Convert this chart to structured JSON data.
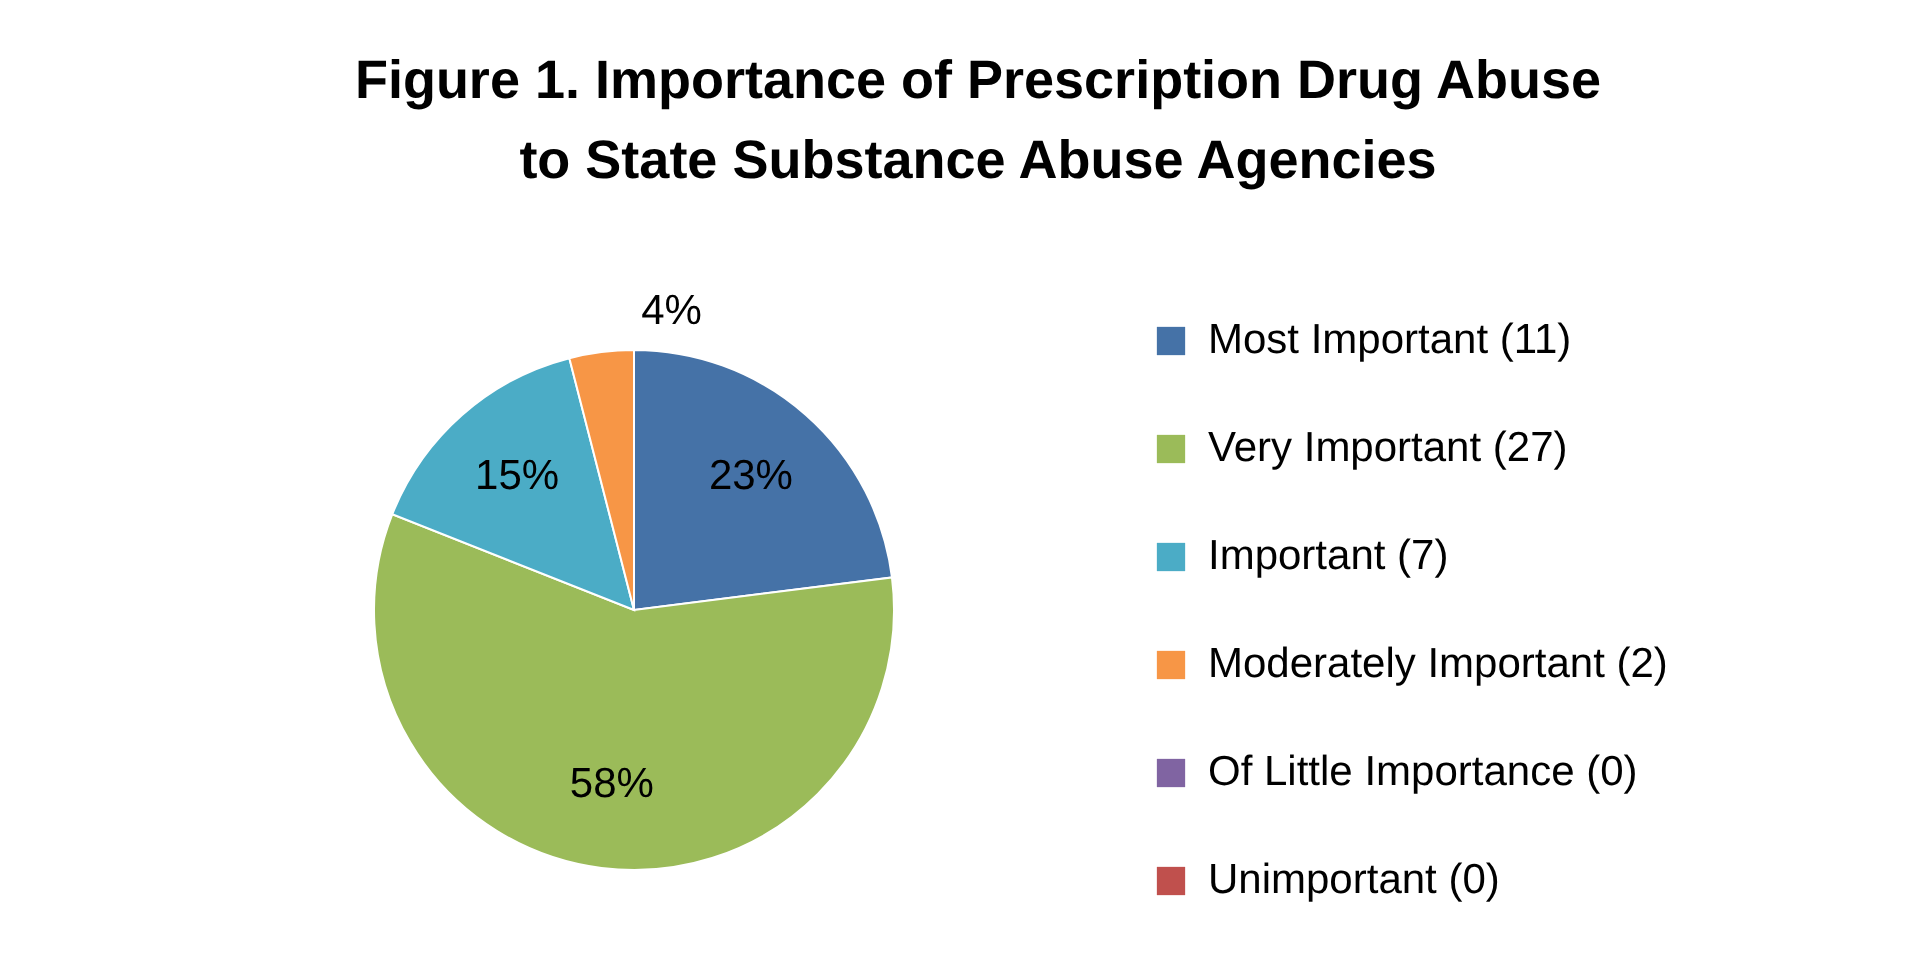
{
  "chart_data": {
    "type": "pie",
    "title": "Figure 1. Importance of Prescription Drug Abuse\nto State Substance Abuse Agencies",
    "categories": [
      "Most Important (11)",
      "Very Important (27)",
      "Important (7)",
      "Moderately Important (2)",
      "Of Little Importance (0)",
      "Unimportant (0)"
    ],
    "values": [
      23,
      58,
      15,
      4,
      0,
      0
    ],
    "value_labels": [
      "23%",
      "58%",
      "15%",
      "4%",
      null,
      null
    ],
    "colors": [
      "#4572a7",
      "#9bbb59",
      "#4bacc6",
      "#f79646",
      "#8064a2",
      "#c0504d"
    ],
    "legend": "right"
  }
}
